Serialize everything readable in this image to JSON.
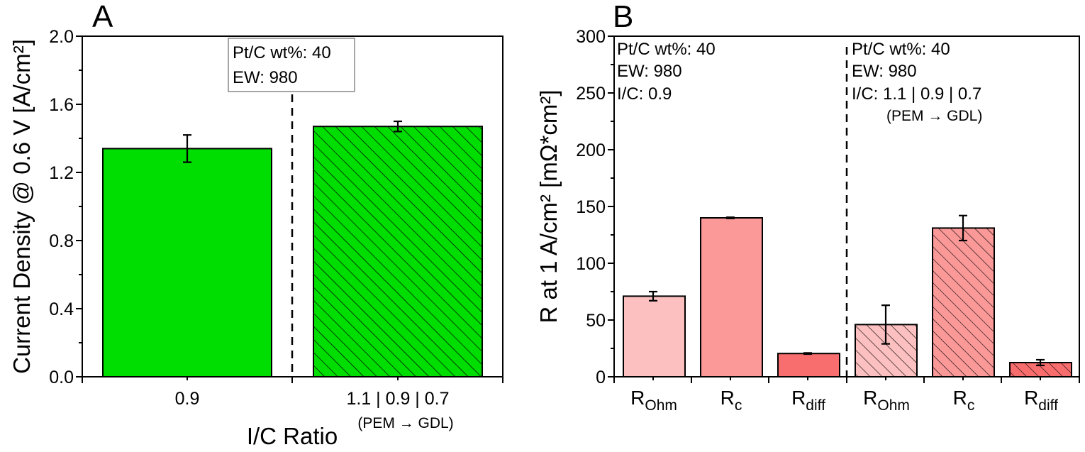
{
  "chart_data": [
    {
      "panel": "A",
      "type": "bar",
      "title": "",
      "xlabel": "I/C Ratio",
      "ylabel": "Current Density @ 0.6 V [A/cm²]",
      "ylim": [
        0,
        2.0
      ],
      "yticks": [
        "0.0",
        "0.4",
        "0.8",
        "1.2",
        "1.6",
        "2.0"
      ],
      "grid": false,
      "categories": [
        "0.9",
        "1.1 | 0.9 | 0.7"
      ],
      "category_sublabels": [
        "",
        "(PEM → GDL)"
      ],
      "values": [
        1.34,
        1.47
      ],
      "errors": [
        0.08,
        0.03
      ],
      "colors": [
        "#00dd00",
        "#00dd00"
      ],
      "hatched": [
        false,
        true
      ],
      "annotation": [
        "Pt/C wt%: 40",
        "EW: 980"
      ]
    },
    {
      "panel": "B",
      "type": "bar",
      "title": "",
      "xlabel": "",
      "ylabel": "R at 1 A/cm² [mΩ*cm²]",
      "ylim": [
        0,
        300
      ],
      "yticks": [
        "0",
        "50",
        "100",
        "150",
        "200",
        "250",
        "300"
      ],
      "grid": false,
      "categories": [
        {
          "main": "R",
          "sub": "Ohm"
        },
        {
          "main": "R",
          "sub": "c"
        },
        {
          "main": "R",
          "sub": "diff"
        },
        {
          "main": "R",
          "sub": "Ohm"
        },
        {
          "main": "R",
          "sub": "c"
        },
        {
          "main": "R",
          "sub": "diff"
        }
      ],
      "values": [
        71,
        140,
        20.5,
        46,
        131,
        12.5
      ],
      "errors": [
        4,
        0.5,
        0.5,
        17,
        11,
        2.5
      ],
      "colors": [
        "#fcc0c0",
        "#fb9898",
        "#f86d6d",
        "#fcc0c0",
        "#fb9898",
        "#f86d6d"
      ],
      "hatched": [
        false,
        false,
        false,
        true,
        true,
        true
      ],
      "annotations": [
        [
          "Pt/C wt%: 40",
          "EW: 980",
          "I/C: 0.9"
        ],
        [
          "Pt/C wt%: 40",
          "EW: 980",
          "I/C: 1.1 | 0.9 | 0.7",
          "(PEM → GDL)"
        ]
      ]
    }
  ]
}
